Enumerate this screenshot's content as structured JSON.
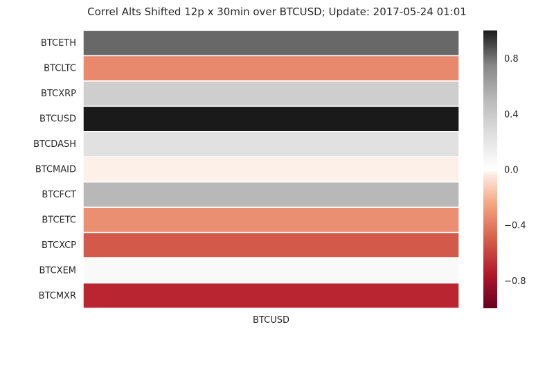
{
  "chart_data": {
    "type": "heatmap",
    "title": "Correl Alts Shifted 12p x 30min over BTCUSD; Update: 2017-05-24 01:01",
    "columns": [
      "BTCUSD"
    ],
    "rows": [
      "BTCETH",
      "BTCLTC",
      "BTCXRP",
      "BTCUSD",
      "BTCDASH",
      "BTCMAID",
      "BTCFCT",
      "BTCETC",
      "BTCXCP",
      "BTCXEM",
      "BTCMXR"
    ],
    "values": [
      0.82,
      -0.35,
      0.37,
      1.0,
      0.24,
      -0.02,
      0.51,
      -0.33,
      -0.52,
      0.05,
      -0.7
    ],
    "colorbar": {
      "range": [
        -1.0,
        1.0
      ],
      "ticks": [
        0.8,
        0.4,
        0.0,
        -0.4,
        -0.8
      ],
      "tick_labels": [
        "0.8",
        "0.4",
        "0.0",
        "−0.4",
        "−0.8"
      ],
      "colormap": "RdGy_r"
    }
  }
}
